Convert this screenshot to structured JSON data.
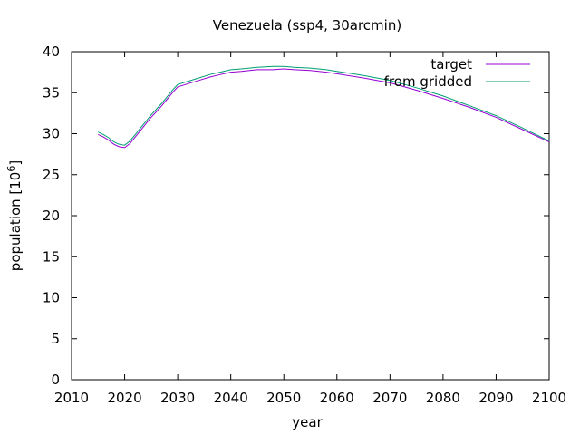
{
  "chart_data": {
    "type": "line",
    "title": "Venezuela (ssp4, 30arcmin)",
    "xlabel": "year",
    "ylabel_main": "population [10",
    "ylabel_sup": "6",
    "ylabel_end": "]",
    "xlim": [
      2010,
      2100
    ],
    "ylim": [
      0,
      40
    ],
    "xticks": [
      2010,
      2020,
      2030,
      2040,
      2050,
      2060,
      2070,
      2080,
      2090,
      2100
    ],
    "yticks": [
      0,
      5,
      10,
      15,
      20,
      25,
      30,
      35,
      40
    ],
    "grid": false,
    "legend_position": "top-right",
    "series": [
      {
        "name": "target",
        "color": "#9400d3",
        "x": [
          2015,
          2016,
          2017,
          2018,
          2019,
          2020,
          2021,
          2022,
          2023,
          2024,
          2025,
          2026,
          2027,
          2028,
          2029,
          2030,
          2032,
          2034,
          2036,
          2038,
          2040,
          2042,
          2045,
          2048,
          2050,
          2052,
          2055,
          2058,
          2060,
          2065,
          2070,
          2075,
          2080,
          2085,
          2090,
          2095,
          2100
        ],
        "y": [
          29.9,
          29.6,
          29.2,
          28.7,
          28.4,
          28.3,
          28.8,
          29.6,
          30.4,
          31.2,
          32.0,
          32.7,
          33.4,
          34.2,
          35.0,
          35.7,
          36.1,
          36.5,
          36.9,
          37.2,
          37.5,
          37.6,
          37.8,
          37.8,
          37.9,
          37.8,
          37.7,
          37.5,
          37.3,
          36.8,
          36.2,
          35.3,
          34.3,
          33.2,
          32.0,
          30.5,
          29.0
        ]
      },
      {
        "name": "from gridded",
        "color": "#009e73",
        "x": [
          2015,
          2016,
          2017,
          2018,
          2019,
          2020,
          2021,
          2022,
          2023,
          2024,
          2025,
          2026,
          2027,
          2028,
          2029,
          2030,
          2032,
          2034,
          2036,
          2038,
          2040,
          2042,
          2045,
          2048,
          2050,
          2052,
          2055,
          2058,
          2060,
          2065,
          2070,
          2075,
          2080,
          2085,
          2090,
          2095,
          2100
        ],
        "y": [
          30.2,
          29.9,
          29.5,
          29.0,
          28.7,
          28.6,
          29.1,
          29.9,
          30.7,
          31.5,
          32.3,
          33.0,
          33.7,
          34.5,
          35.3,
          36.0,
          36.4,
          36.8,
          37.2,
          37.5,
          37.8,
          37.9,
          38.1,
          38.2,
          38.2,
          38.1,
          38.0,
          37.8,
          37.6,
          37.1,
          36.5,
          35.6,
          34.6,
          33.4,
          32.2,
          30.7,
          29.1
        ]
      }
    ]
  }
}
